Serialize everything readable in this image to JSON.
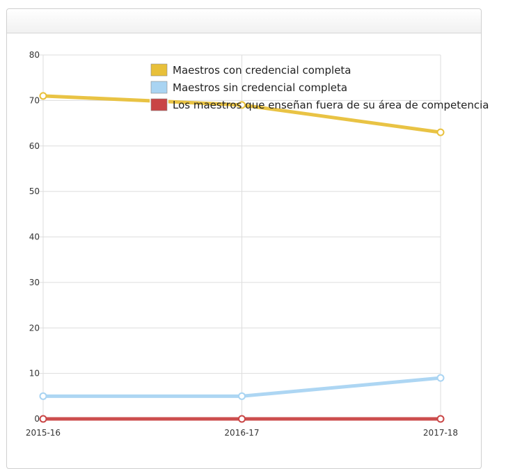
{
  "chart_data": {
    "type": "line",
    "categories": [
      "2015-16",
      "2016-17",
      "2017-18"
    ],
    "ylim": [
      0,
      80
    ],
    "yticks": [
      0,
      10,
      20,
      30,
      40,
      50,
      60,
      70,
      80
    ],
    "grid": true,
    "legend_position": "top-center",
    "series": [
      {
        "name": "Maestros con credencial completa",
        "values": [
          71,
          69,
          63
        ],
        "color": "#e8c03a"
      },
      {
        "name": "Maestros sin credencial completa",
        "values": [
          5,
          5,
          9
        ],
        "color": "#a9d4f2"
      },
      {
        "name": "Los maestros que enseñan fuera de su área de competencia",
        "values": [
          0,
          0,
          0
        ],
        "color": "#c94545"
      }
    ]
  }
}
